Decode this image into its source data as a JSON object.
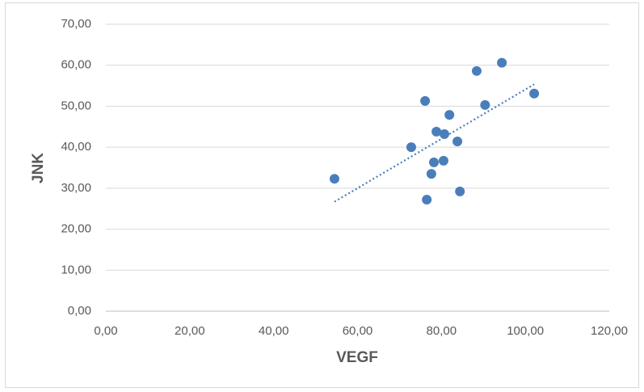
{
  "chart_data": {
    "type": "scatter",
    "x_label": "VEGF",
    "y_label": "JNK",
    "series": [
      {
        "name": "JNK",
        "color": "#4a7ebb",
        "x": [
          54.5,
          72.8,
          76.1,
          76.5,
          77.6,
          78.2,
          78.8,
          80.5,
          80.7,
          81.9,
          83.8,
          84.4,
          88.4,
          90.4,
          94.4,
          102.1
        ],
        "values": [
          32.3,
          40.0,
          51.3,
          27.2,
          33.5,
          36.3,
          43.8,
          36.7,
          43.2,
          47.9,
          41.4,
          29.2,
          58.6,
          50.3,
          60.6,
          53.1
        ]
      }
    ],
    "trendline": "linear",
    "trendline_color": "#4a7ebb",
    "xlim": [
      0,
      120
    ],
    "xticks": [
      {
        "value": 0,
        "label": "0,00"
      },
      {
        "value": 20,
        "label": "20,00"
      },
      {
        "value": 40,
        "label": "40,00"
      },
      {
        "value": 60,
        "label": "60,00"
      },
      {
        "value": 80,
        "label": "80,00"
      },
      {
        "value": 100,
        "label": "100,00"
      },
      {
        "value": 120,
        "label": "120,00"
      }
    ],
    "ylim": [
      0,
      70
    ],
    "yticks": [
      {
        "value": 0,
        "label": "0,00"
      },
      {
        "value": 10,
        "label": "10,00"
      },
      {
        "value": 20,
        "label": "20,00"
      },
      {
        "value": 30,
        "label": "30,00"
      },
      {
        "value": 40,
        "label": "40,00"
      },
      {
        "value": 50,
        "label": "50,00"
      },
      {
        "value": 60,
        "label": "60,00"
      },
      {
        "value": 70,
        "label": "70,00"
      }
    ],
    "grid": true
  }
}
